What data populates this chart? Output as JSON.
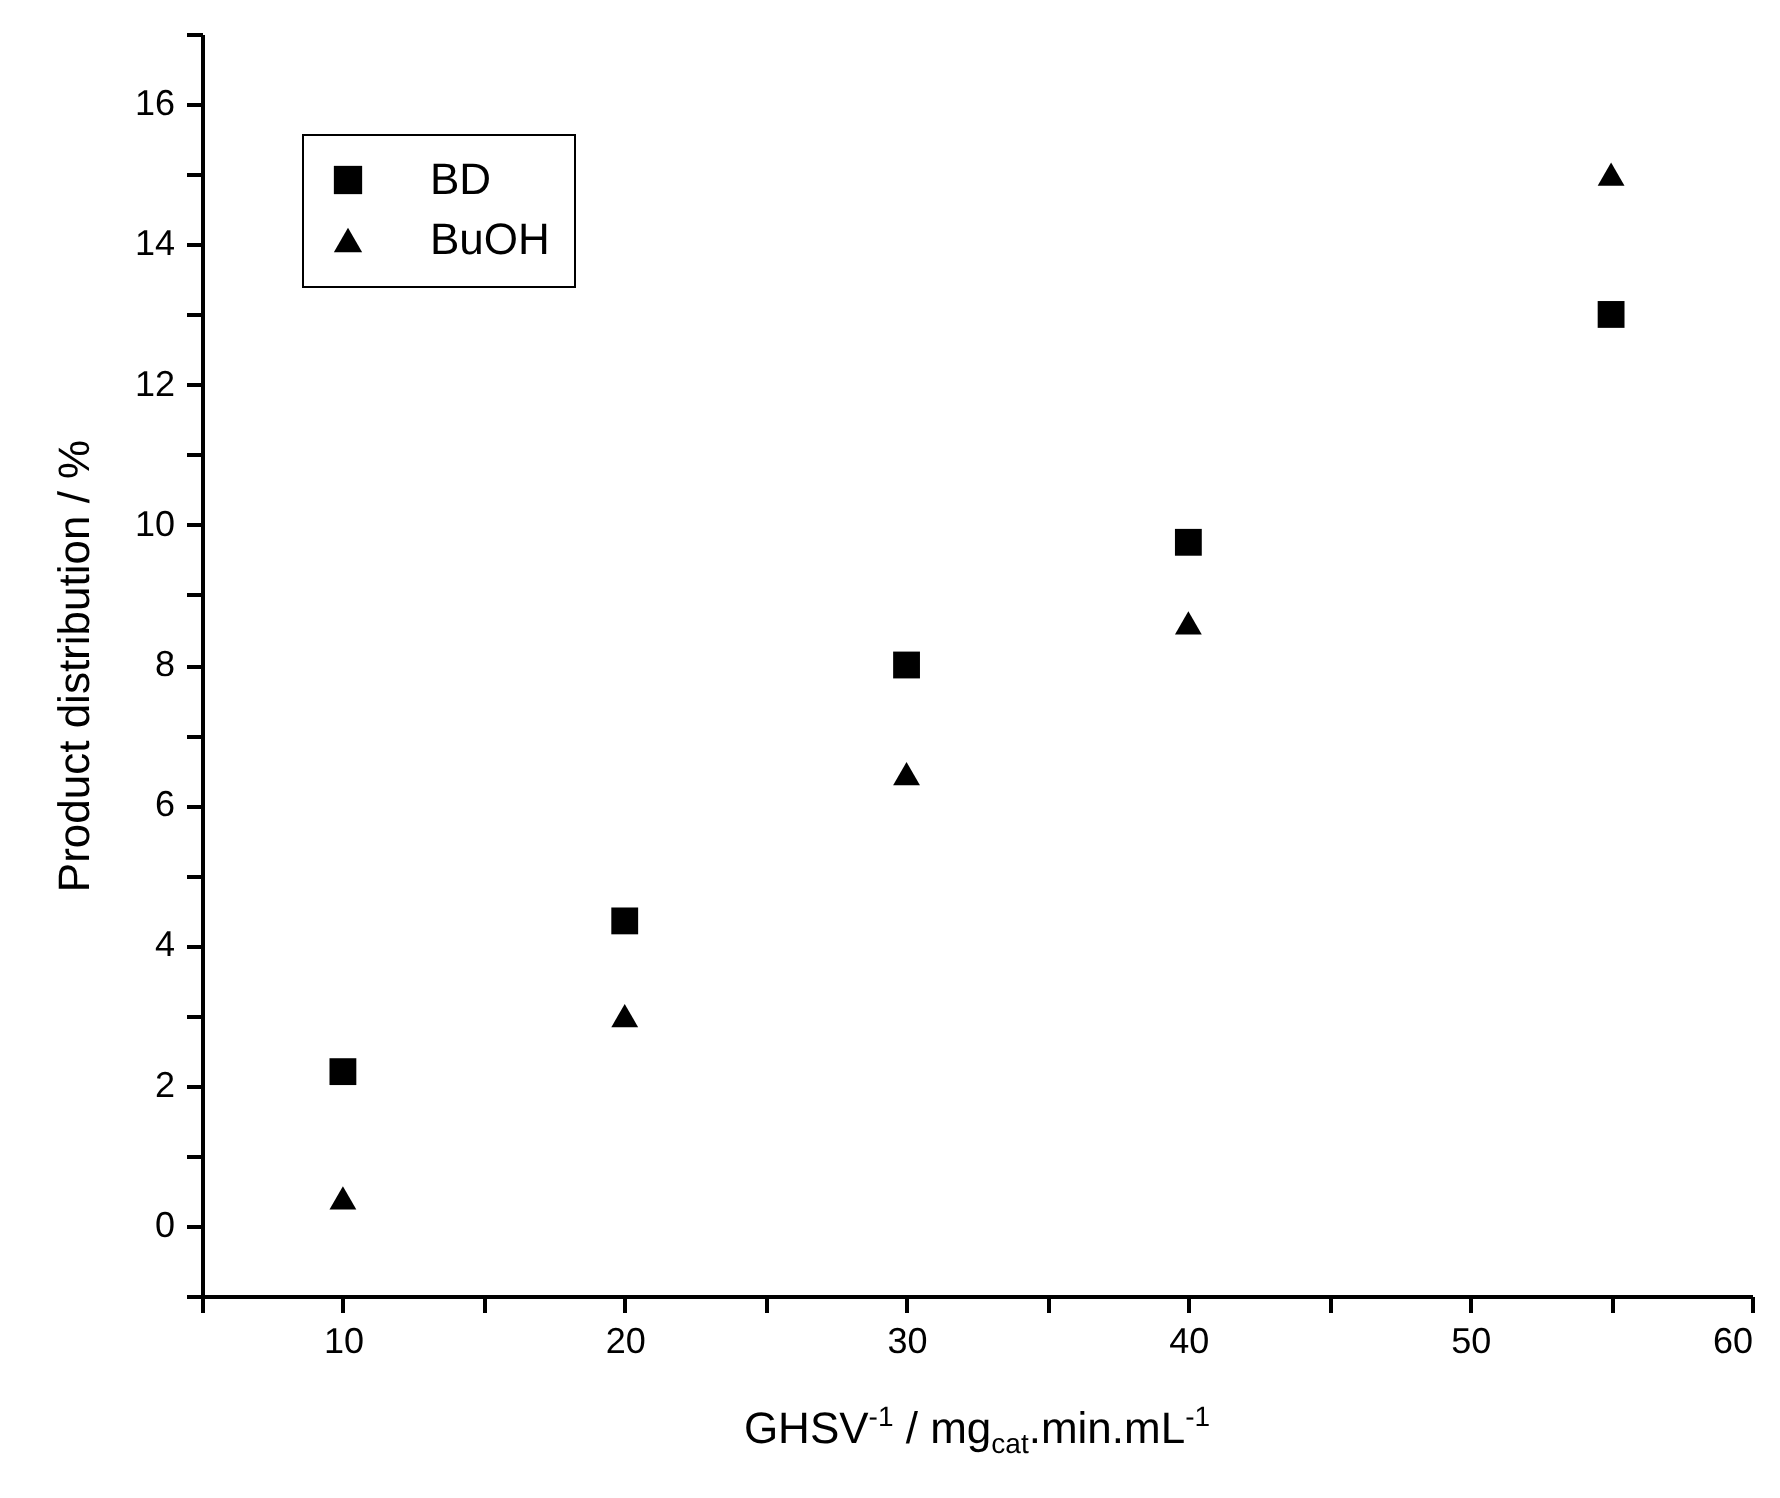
{
  "chart_data": {
    "type": "scatter",
    "xlabel": "GHSV$^{-1}$ / mg$_{cat}$.min.mL$^{-1}$",
    "ylabel": "Product distribution / %",
    "x": [
      10,
      20,
      30,
      40,
      55
    ],
    "series": [
      {
        "name": "BD",
        "color": "#000000",
        "marker": "square",
        "values": [
          2.2,
          4.35,
          8.0,
          9.75,
          13.0
        ]
      },
      {
        "name": "BuOH",
        "color": "#000000",
        "marker": "triangle",
        "values": [
          0.4,
          3.0,
          6.45,
          8.6,
          15.0
        ]
      }
    ],
    "xlim": [
      5,
      60
    ],
    "xticks": [
      {
        "value": 5,
        "label": null
      },
      10,
      {
        "value": 15,
        "label": null
      },
      20,
      {
        "value": 25,
        "label": null
      },
      30,
      {
        "value": 35,
        "label": null
      },
      40,
      {
        "value": 45,
        "label": null
      },
      50,
      {
        "value": 55,
        "label": null
      },
      60
    ],
    "ylim": [
      -1,
      17
    ],
    "yticks": [
      {
        "value": -1,
        "label": null
      },
      0,
      {
        "value": 1,
        "label": null
      },
      2,
      {
        "value": 3,
        "label": null
      },
      4,
      {
        "value": 5,
        "label": null
      },
      6,
      {
        "value": 7,
        "label": null
      },
      8,
      {
        "value": 9,
        "label": null
      },
      10,
      {
        "value": 11,
        "label": null
      },
      12,
      {
        "value": 13,
        "label": null
      },
      14,
      {
        "value": 15,
        "label": null
      },
      16,
      {
        "value": 17,
        "label": null
      }
    ],
    "grid": false,
    "legend": "top left"
  }
}
